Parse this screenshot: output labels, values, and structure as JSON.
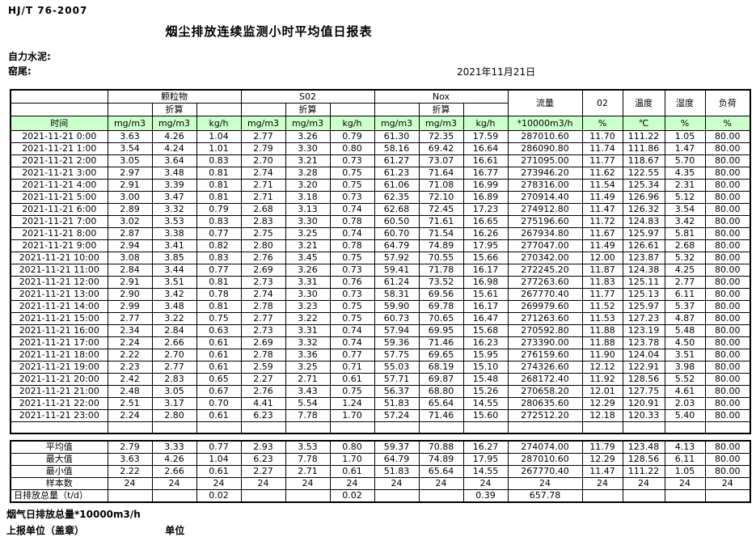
{
  "page": {
    "standard": "HJ/T  76-2007",
    "title": "烟尘排放连续监测小时平均值日报表",
    "company": "自力水泥:",
    "station": "窑尾:",
    "date": "2021年11月21日"
  },
  "table": {
    "header": {
      "time": "时间",
      "groups": [
        {
          "label": "颗粒物",
          "sub": "折算"
        },
        {
          "label": "S02",
          "sub": "折算"
        },
        {
          "label": "Nox",
          "sub": "折算"
        }
      ],
      "unit_mg": "mg/m3",
      "unit_kg": "kg/h",
      "flow": {
        "label": "流量",
        "unit": "*10000m3/h"
      },
      "o2": {
        "label": "02",
        "unit": "%"
      },
      "temperature": {
        "label": "温度",
        "unit": "℃"
      },
      "humidity": {
        "label": "湿度",
        "unit": "%"
      },
      "load": {
        "label": "负荷",
        "unit": "%"
      }
    },
    "rows": [
      [
        "2021-11-21 0:00",
        "3.63",
        "4.26",
        "1.04",
        "2.77",
        "3.26",
        "0.79",
        "61.30",
        "72.35",
        "17.59",
        "287010.60",
        "11.70",
        "111.22",
        "1.05",
        "80.00"
      ],
      [
        "2021-11-21 1:00",
        "3.54",
        "4.24",
        "1.01",
        "2.79",
        "3.30",
        "0.80",
        "58.16",
        "69.42",
        "16.64",
        "286090.80",
        "11.74",
        "111.86",
        "1.47",
        "80.00"
      ],
      [
        "2021-11-21 2:00",
        "3.05",
        "3.64",
        "0.83",
        "2.70",
        "3.21",
        "0.73",
        "61.27",
        "73.07",
        "16.61",
        "271095.00",
        "11.77",
        "118.67",
        "5.70",
        "80.00"
      ],
      [
        "2021-11-21 3:00",
        "2.97",
        "3.48",
        "0.81",
        "2.74",
        "3.28",
        "0.75",
        "61.23",
        "71.64",
        "16.77",
        "273946.20",
        "11.62",
        "122.55",
        "4.35",
        "80.00"
      ],
      [
        "2021-11-21 4:00",
        "2.91",
        "3.39",
        "0.81",
        "2.71",
        "3.20",
        "0.75",
        "61.06",
        "71.08",
        "16.99",
        "278316.00",
        "11.54",
        "125.34",
        "2.31",
        "80.00"
      ],
      [
        "2021-11-21 5:00",
        "3.00",
        "3.47",
        "0.81",
        "2.71",
        "3.18",
        "0.73",
        "62.35",
        "72.10",
        "16.89",
        "270914.40",
        "11.49",
        "126.96",
        "5.12",
        "80.00"
      ],
      [
        "2021-11-21 6:00",
        "2.89",
        "3.32",
        "0.79",
        "2.68",
        "3.13",
        "0.74",
        "62.68",
        "72.45",
        "17.23",
        "274912.80",
        "11.47",
        "126.32",
        "3.54",
        "80.00"
      ],
      [
        "2021-11-21 7:00",
        "3.02",
        "3.53",
        "0.83",
        "2.83",
        "3.30",
        "0.78",
        "60.50",
        "71.61",
        "16.65",
        "275196.60",
        "11.72",
        "124.83",
        "3.42",
        "80.00"
      ],
      [
        "2021-11-21 8:00",
        "2.87",
        "3.38",
        "0.77",
        "2.75",
        "3.25",
        "0.74",
        "60.70",
        "71.54",
        "16.26",
        "267934.80",
        "11.67",
        "125.97",
        "5.81",
        "80.00"
      ],
      [
        "2021-11-21 9:00",
        "2.94",
        "3.41",
        "0.82",
        "2.80",
        "3.21",
        "0.78",
        "64.79",
        "74.89",
        "17.95",
        "277047.00",
        "11.49",
        "126.61",
        "2.68",
        "80.00"
      ],
      [
        "2021-11-21 10:00",
        "3.08",
        "3.85",
        "0.83",
        "2.76",
        "3.45",
        "0.75",
        "57.92",
        "70.55",
        "15.66",
        "270342.00",
        "12.00",
        "123.87",
        "5.32",
        "80.00"
      ],
      [
        "2021-11-21 11:00",
        "2.84",
        "3.44",
        "0.77",
        "2.69",
        "3.26",
        "0.73",
        "59.41",
        "71.78",
        "16.17",
        "272245.20",
        "11.87",
        "124.38",
        "4.25",
        "80.00"
      ],
      [
        "2021-11-21 12:00",
        "2.91",
        "3.51",
        "0.81",
        "2.73",
        "3.31",
        "0.76",
        "61.24",
        "73.52",
        "16.98",
        "277263.60",
        "11.83",
        "125.11",
        "2.77",
        "80.00"
      ],
      [
        "2021-11-21 13:00",
        "2.90",
        "3.42",
        "0.78",
        "2.74",
        "3.30",
        "0.73",
        "58.31",
        "69.56",
        "15.61",
        "267770.40",
        "11.77",
        "125.13",
        "6.11",
        "80.00"
      ],
      [
        "2021-11-21 14:00",
        "2.99",
        "3.48",
        "0.81",
        "2.78",
        "3.23",
        "0.75",
        "59.90",
        "69.78",
        "16.17",
        "269979.60",
        "11.52",
        "125.97",
        "5.37",
        "80.00"
      ],
      [
        "2021-11-21 15:00",
        "2.77",
        "3.22",
        "0.75",
        "2.77",
        "3.22",
        "0.75",
        "60.73",
        "70.65",
        "16.47",
        "271263.60",
        "11.53",
        "127.23",
        "4.87",
        "80.00"
      ],
      [
        "2021-11-21 16:00",
        "2.34",
        "2.84",
        "0.63",
        "2.73",
        "3.31",
        "0.74",
        "57.94",
        "69.95",
        "15.68",
        "270592.80",
        "11.88",
        "123.19",
        "5.48",
        "80.00"
      ],
      [
        "2021-11-21 17:00",
        "2.24",
        "2.66",
        "0.61",
        "2.69",
        "3.32",
        "0.74",
        "59.36",
        "71.46",
        "16.23",
        "273390.00",
        "11.88",
        "123.78",
        "4.50",
        "80.00"
      ],
      [
        "2021-11-21 18:00",
        "2.22",
        "2.70",
        "0.61",
        "2.78",
        "3.36",
        "0.77",
        "57.75",
        "69.65",
        "15.95",
        "276159.60",
        "11.90",
        "124.04",
        "3.51",
        "80.00"
      ],
      [
        "2021-11-21 19:00",
        "2.23",
        "2.77",
        "0.61",
        "2.59",
        "3.25",
        "0.71",
        "55.03",
        "68.19",
        "15.10",
        "274326.60",
        "12.12",
        "122.91",
        "3.98",
        "80.00"
      ],
      [
        "2021-11-21 20:00",
        "2.42",
        "2.83",
        "0.65",
        "2.27",
        "2.71",
        "0.61",
        "57.71",
        "69.87",
        "15.48",
        "268172.40",
        "11.92",
        "128.56",
        "5.52",
        "80.00"
      ],
      [
        "2021-11-21 21:00",
        "2.48",
        "3.05",
        "0.67",
        "2.76",
        "3.43",
        "0.75",
        "56.37",
        "68.80",
        "15.26",
        "270658.20",
        "12.01",
        "127.75",
        "4.61",
        "80.00"
      ],
      [
        "2021-11-21 22:00",
        "2.51",
        "3.17",
        "0.70",
        "4.41",
        "5.54",
        "1.24",
        "51.83",
        "65.64",
        "14.55",
        "280635.60",
        "12.29",
        "120.91",
        "2.03",
        "80.00"
      ],
      [
        "2021-11-21 23:00",
        "2.24",
        "2.80",
        "0.61",
        "6.23",
        "7.78",
        "1.70",
        "57.24",
        "71.46",
        "15.60",
        "272512.20",
        "12.18",
        "120.33",
        "5.40",
        "80.00"
      ]
    ],
    "summary": [
      {
        "label": "平均值",
        "values": [
          "2.79",
          "3.33",
          "0.77",
          "2.93",
          "3.53",
          "0.80",
          "59.37",
          "70.88",
          "16.27",
          "274074.00",
          "11.79",
          "123.48",
          "4.13",
          "80.00"
        ]
      },
      {
        "label": "最大值",
        "values": [
          "3.63",
          "4.26",
          "1.04",
          "6.23",
          "7.78",
          "1.70",
          "64.79",
          "74.89",
          "17.95",
          "287010.60",
          "12.29",
          "128.56",
          "6.11",
          "80.00"
        ]
      },
      {
        "label": "最小值",
        "values": [
          "2.22",
          "2.66",
          "0.61",
          "2.27",
          "2.71",
          "0.61",
          "51.83",
          "65.64",
          "14.55",
          "267770.40",
          "11.47",
          "111.22",
          "1.05",
          "80.00"
        ]
      },
      {
        "label": "样本数",
        "values": [
          "24",
          "24",
          "24",
          "24",
          "24",
          "24",
          "24",
          "24",
          "24",
          "24",
          "24",
          "24",
          "24",
          "24"
        ]
      },
      {
        "label": "日排放总量（t/d）",
        "values": [
          "",
          "",
          "0.02",
          "",
          "",
          "0.02",
          "",
          "",
          "0.39",
          "657.78",
          "",
          "",
          "",
          ""
        ]
      }
    ]
  },
  "footer": {
    "flow_note": "烟气日排放总量*10000m3/h",
    "report_unit": "上报单位（盖章）",
    "unit_label": "单位"
  },
  "colors": {
    "header_green": "#ccffcc",
    "border": "#000000"
  }
}
